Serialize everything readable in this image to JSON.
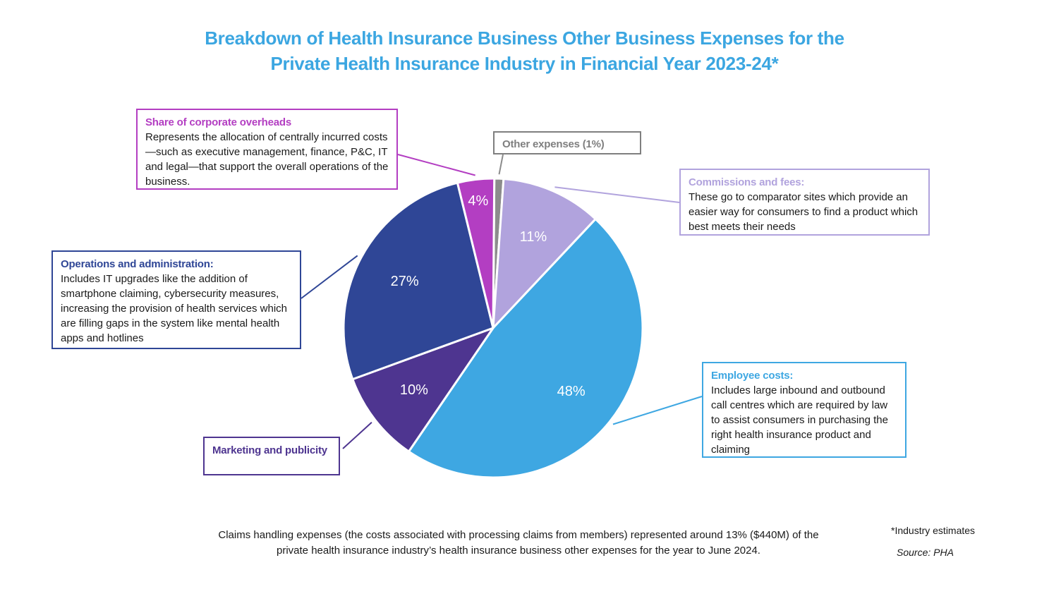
{
  "title_line1": "Breakdown of Health Insurance Business Other Business Expenses for the",
  "title_line2": "Private Health Insurance Industry in Financial Year 2023-24*",
  "chart_data": {
    "type": "pie",
    "title": "Breakdown of Health Insurance Business Other Business Expenses for the Private Health Insurance Industry in Financial Year 2023-24*",
    "slices": [
      {
        "key": "other",
        "name": "Other expenses",
        "value": 1,
        "label": "",
        "color": "#8c8c8c"
      },
      {
        "key": "commissions",
        "name": "Commissions and fees",
        "value": 11,
        "label": "11%",
        "color": "#b1a3dd"
      },
      {
        "key": "employee",
        "name": "Employee costs",
        "value": 48,
        "label": "48%",
        "color": "#3ea7e2"
      },
      {
        "key": "marketing",
        "name": "Marketing and publicity",
        "value": 10,
        "label": "10%",
        "color": "#4e3590"
      },
      {
        "key": "operations",
        "name": "Operations and administration",
        "value": 27,
        "label": "27%",
        "color": "#2f4696"
      },
      {
        "key": "overheads",
        "name": "Share of corporate overheads",
        "value": 4,
        "label": "4%",
        "color": "#b33ec2"
      }
    ]
  },
  "callouts": {
    "overheads": {
      "head": "Share of corporate overheads",
      "body": "Represents the allocation of centrally incurred costs—such as executive management, finance, P&C, IT and legal—that support the overall operations of the business.",
      "color": "#b33ec2"
    },
    "other": {
      "head": "Other expenses (1%)",
      "color": "#7f7f7f"
    },
    "commissions": {
      "head": "Commissions and fees:",
      "body": "These go to comparator sites which provide an easier way for consumers to find a product which best meets their needs",
      "color": "#b1a3dd"
    },
    "operations": {
      "head": "Operations and administration:",
      "body": "Includes IT upgrades like the addition of smartphone claiming, cybersecurity measures, increasing the provision of health services which are filling gaps in the system like mental health apps and hotlines",
      "color": "#2f4696"
    },
    "employee": {
      "head": "Employee costs:",
      "body": "Includes large inbound and outbound call centres which are required by law to assist consumers in purchasing the right health insurance product and claiming",
      "color": "#3ea7e2"
    },
    "marketing": {
      "head": "Marketing and publicity",
      "color": "#4e3590"
    }
  },
  "footnote": "Claims handling expenses (the costs associated with processing claims from members) represented around 13% ($440M) of the private health insurance industry’s health insurance business other expenses for the year to June 2024.",
  "industry_note": "*Industry estimates",
  "source": "Source: PHA"
}
